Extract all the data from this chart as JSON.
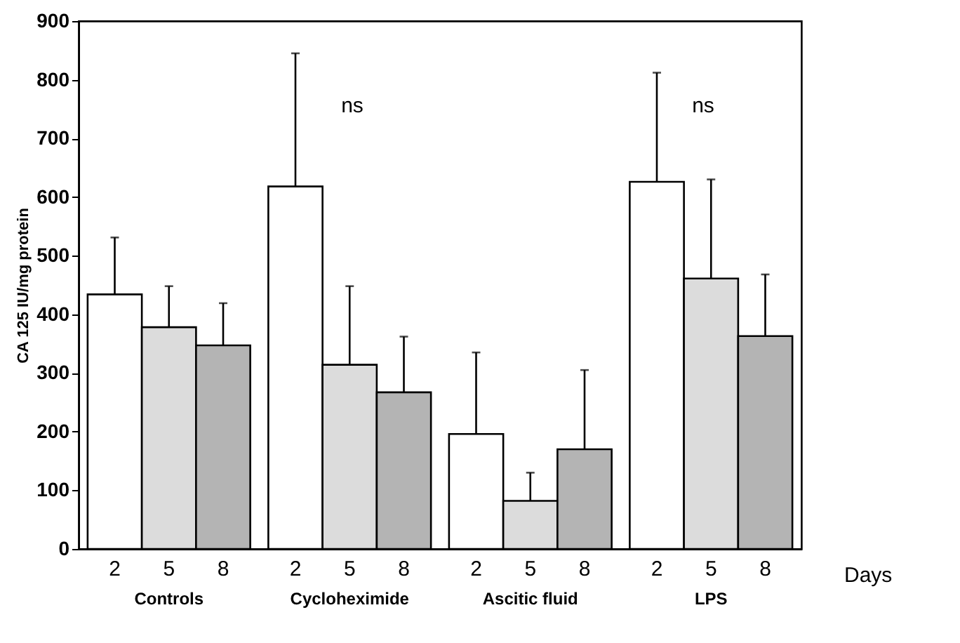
{
  "chart_data": {
    "type": "bar",
    "ylabel": "CA 125 IU/mg protein",
    "xlabel": "Days",
    "categories": [
      "Controls",
      "Cycloheximide",
      "Ascitic fluid",
      "LPS"
    ],
    "series": [
      {
        "name": "2",
        "color": "#ffffff",
        "values": [
          434,
          618,
          196,
          626
        ],
        "errors": [
          [
            434,
            531
          ],
          [
            618,
            845
          ],
          [
            196,
            335
          ],
          [
            626,
            812
          ]
        ]
      },
      {
        "name": "5",
        "color": "#dcdcdc",
        "values": [
          378,
          314,
          82,
          461
        ],
        "errors": [
          [
            378,
            448
          ],
          [
            314,
            448
          ],
          [
            82,
            130
          ],
          [
            461,
            630
          ]
        ]
      },
      {
        "name": "8",
        "color": "#b4b4b4",
        "values": [
          347,
          267,
          170,
          363
        ],
        "errors": [
          [
            347,
            419
          ],
          [
            267,
            362
          ],
          [
            170,
            305
          ],
          [
            363,
            468
          ]
        ]
      }
    ],
    "ylim": [
      0,
      900
    ],
    "yticks": [
      0,
      100,
      200,
      300,
      400,
      500,
      600,
      700,
      800,
      900
    ],
    "grid": false,
    "legend": false,
    "annotations": [
      "ns",
      "ns"
    ]
  }
}
